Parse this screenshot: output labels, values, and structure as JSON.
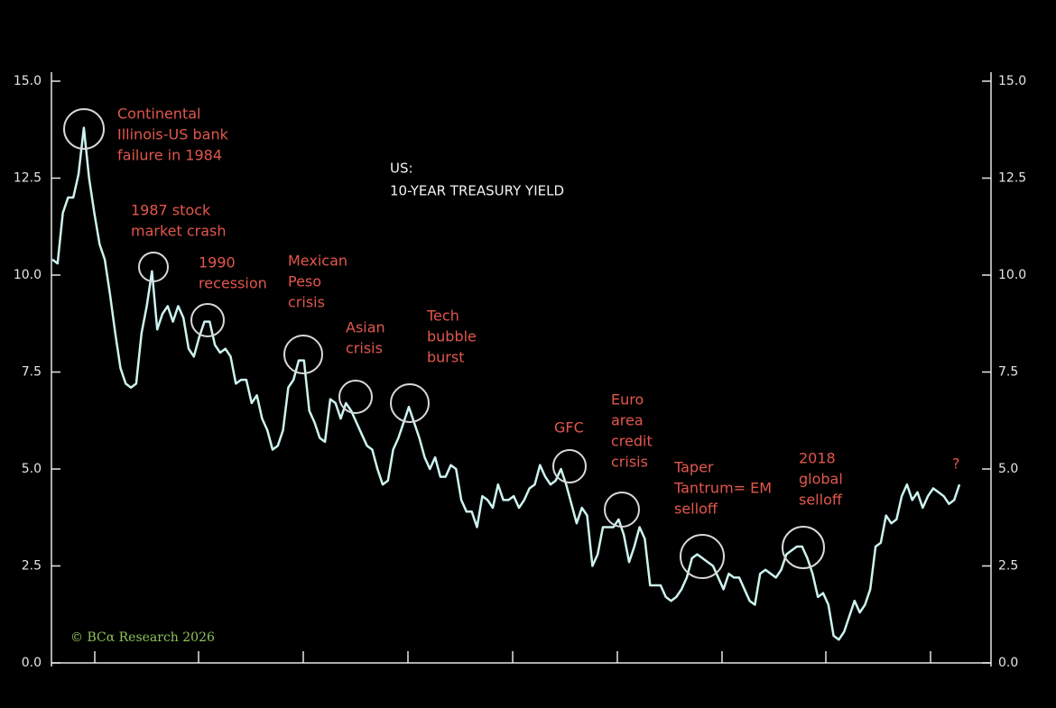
{
  "chart_data": {
    "type": "line",
    "title": [
      "US:",
      "10-YEAR TREASURY YIELD"
    ],
    "series": [
      {
        "color": "#cdf3ef",
        "values": [
          10.4,
          10.3,
          11.6,
          12.0,
          12.0,
          12.6,
          13.8,
          12.5,
          11.6,
          10.8,
          10.4,
          9.5,
          8.5,
          7.6,
          7.2,
          7.1,
          7.2,
          8.5,
          9.2,
          10.1,
          8.6,
          9.0,
          9.2,
          8.8,
          9.2,
          8.9,
          8.1,
          7.9,
          8.4,
          8.8,
          8.8,
          8.2,
          8.0,
          8.1,
          7.9,
          7.2,
          7.3,
          7.3,
          6.7,
          6.9,
          6.3,
          6.0,
          5.5,
          5.6,
          6.0,
          7.1,
          7.3,
          7.8,
          7.8,
          6.5,
          6.2,
          5.8,
          5.7,
          6.8,
          6.7,
          6.3,
          6.7,
          6.5,
          6.2,
          5.9,
          5.6,
          5.5,
          5.0,
          4.6,
          4.7,
          5.5,
          5.8,
          6.2,
          6.6,
          6.2,
          5.8,
          5.3,
          5.0,
          5.3,
          4.8,
          4.8,
          5.1,
          5.0,
          4.2,
          3.9,
          3.9,
          3.5,
          4.3,
          4.2,
          4.0,
          4.6,
          4.2,
          4.2,
          4.3,
          4.0,
          4.2,
          4.5,
          4.6,
          5.1,
          4.8,
          4.6,
          4.7,
          5.0,
          4.6,
          4.1,
          3.6,
          4.0,
          3.8,
          2.5,
          2.8,
          3.5,
          3.5,
          3.5,
          3.7,
          3.3,
          2.6,
          3.0,
          3.5,
          3.2,
          2.0,
          2.0,
          2.0,
          1.7,
          1.6,
          1.7,
          1.9,
          2.2,
          2.7,
          2.8,
          2.7,
          2.6,
          2.5,
          2.2,
          1.9,
          2.3,
          2.2,
          2.2,
          1.9,
          1.6,
          1.5,
          2.3,
          2.4,
          2.3,
          2.2,
          2.4,
          2.8,
          2.9,
          3.0,
          3.0,
          2.7,
          2.3,
          1.7,
          1.8,
          1.5,
          0.7,
          0.6,
          0.8,
          1.2,
          1.6,
          1.3,
          1.5,
          1.9,
          3.0,
          3.1,
          3.8,
          3.6,
          3.7,
          4.3,
          4.6,
          4.2,
          4.4,
          4.0,
          4.3,
          4.5,
          4.4,
          4.3,
          4.1,
          4.2,
          4.6
        ]
      }
    ],
    "ylim": [
      0,
      15
    ],
    "yticks": [
      {
        "value": 0,
        "label": "0.0"
      },
      {
        "value": 2.5,
        "label": "2.5"
      },
      {
        "value": 5,
        "label": "5.0"
      },
      {
        "value": 7.5,
        "label": "7.5"
      },
      {
        "value": 10,
        "label": "10.0"
      },
      {
        "value": 12.5,
        "label": "12.5"
      },
      {
        "value": 15,
        "label": "15.0"
      }
    ],
    "annotations": [
      {
        "lines": [
          "Continental",
          "Illinois-US bank",
          "failure in 1984"
        ]
      },
      {
        "lines": [
          "1987 stock",
          "market crash"
        ]
      },
      {
        "lines": [
          "1990",
          "recession"
        ]
      },
      {
        "lines": [
          "Mexican",
          "Peso",
          "crisis"
        ]
      },
      {
        "lines": [
          "Asian",
          "crisis"
        ]
      },
      {
        "lines": [
          "Tech",
          "bubble",
          "burst"
        ]
      },
      {
        "lines": [
          "GFC"
        ]
      },
      {
        "lines": [
          "Euro",
          "area",
          "credit",
          "crisis"
        ]
      },
      {
        "lines": [
          "Taper",
          "Tantrum= EM",
          "selloff"
        ]
      },
      {
        "lines": [
          "2018",
          "global",
          "selloff"
        ]
      },
      {
        "lines": [
          "?"
        ]
      }
    ],
    "source": "© BCα Research 2026"
  }
}
